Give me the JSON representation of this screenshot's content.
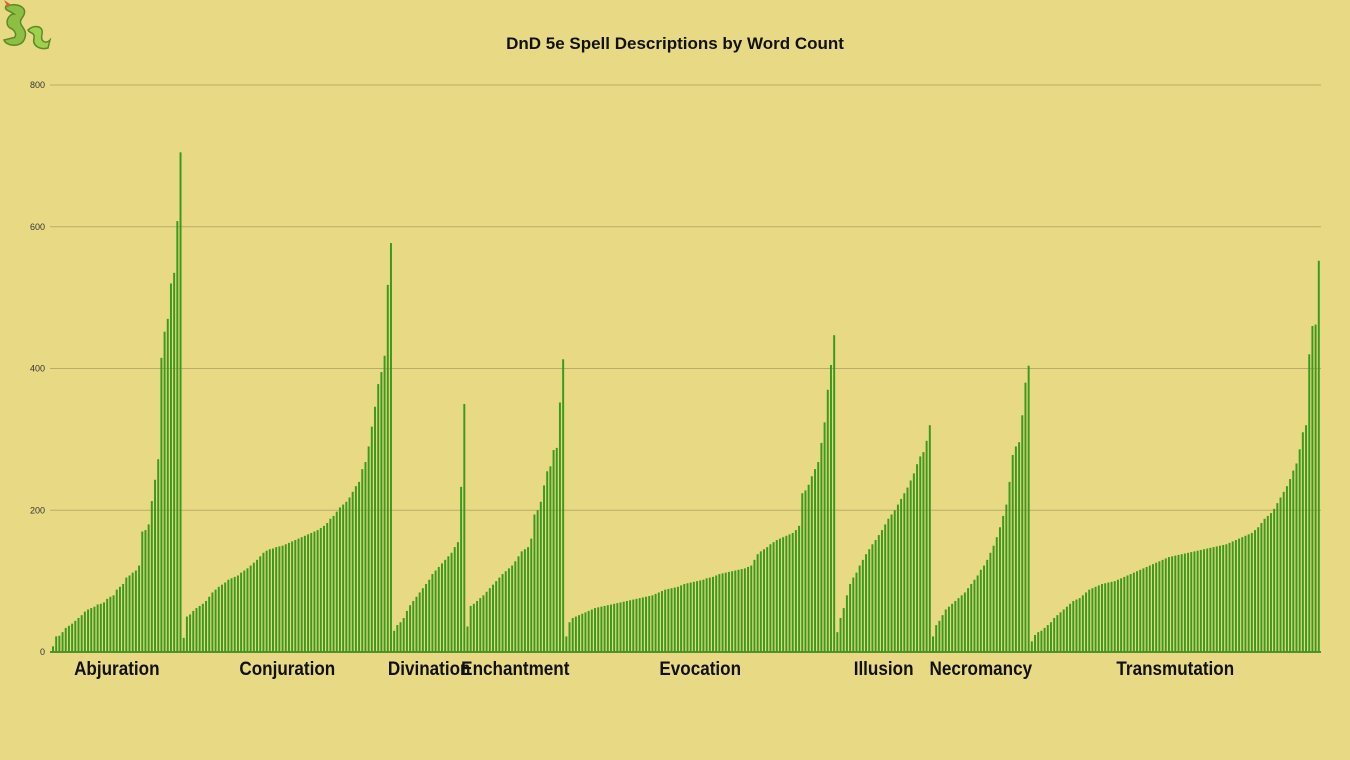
{
  "colors": {
    "background": "#e8da84",
    "bar": "#3b9a1e",
    "bar_edge": "#2a7410",
    "grid": "#b8ad66",
    "logo": "#8dbf45"
  },
  "logo_icon": "dnd-dragon-logo-icon",
  "chart_data": {
    "type": "bar",
    "title": "DnD 5e Spell Descriptions by Word Count",
    "xlabel": "",
    "ylabel": "",
    "ylim": [
      0,
      800
    ],
    "yticks": [
      "0",
      "200",
      "400",
      "600",
      "800"
    ],
    "grid": true,
    "legend": "none",
    "groups": [
      {
        "name": "Abjuration",
        "values": [
          8,
          22,
          23,
          28,
          34,
          37,
          40,
          44,
          48,
          52,
          57,
          60,
          62,
          64,
          67,
          68,
          70,
          75,
          78,
          80,
          88,
          92,
          96,
          105,
          108,
          112,
          115,
          122,
          170,
          172,
          180,
          213,
          243,
          272,
          415,
          452,
          470,
          520,
          535,
          608,
          705
        ]
      },
      {
        "name": "Conjuration",
        "values": [
          20,
          50,
          53,
          58,
          62,
          65,
          68,
          72,
          78,
          84,
          88,
          92,
          95,
          98,
          102,
          104,
          106,
          108,
          112,
          115,
          118,
          122,
          126,
          130,
          135,
          140,
          143,
          145,
          146,
          148,
          149,
          150,
          152,
          154,
          156,
          158,
          160,
          162,
          164,
          166,
          168,
          170,
          172,
          175,
          178,
          182,
          188,
          192,
          198,
          204,
          208,
          212,
          218,
          226,
          234,
          240,
          258,
          268,
          290,
          318,
          346,
          378,
          395,
          418,
          518,
          577
        ]
      },
      {
        "name": "Divination",
        "values": [
          30,
          38,
          42,
          48,
          58,
          66,
          72,
          78,
          84,
          90,
          96,
          102,
          110,
          115,
          120,
          125,
          130,
          135,
          140,
          148,
          155,
          233,
          350
        ]
      },
      {
        "name": "Enchantment",
        "values": [
          36,
          65,
          68,
          72,
          76,
          80,
          85,
          90,
          95,
          100,
          105,
          110,
          114,
          118,
          122,
          128,
          135,
          142,
          145,
          148,
          160,
          194,
          200,
          212,
          235,
          255,
          262,
          285,
          288,
          352,
          413
        ]
      },
      {
        "name": "Evocation",
        "values": [
          22,
          42,
          48,
          50,
          52,
          54,
          56,
          58,
          60,
          62,
          63,
          64,
          65,
          66,
          67,
          68,
          69,
          70,
          71,
          72,
          73,
          74,
          75,
          76,
          77,
          78,
          79,
          80,
          82,
          84,
          86,
          88,
          89,
          90,
          91,
          92,
          94,
          96,
          97,
          98,
          99,
          100,
          101,
          102,
          104,
          105,
          106,
          108,
          110,
          111,
          112,
          113,
          114,
          115,
          116,
          117,
          118,
          120,
          122,
          130,
          138,
          142,
          145,
          148,
          152,
          155,
          158,
          160,
          162,
          164,
          166,
          168,
          172,
          178,
          224,
          228,
          236,
          248,
          258,
          268,
          295,
          324,
          370,
          405,
          447
        ]
      },
      {
        "name": "Illusion",
        "values": [
          28,
          48,
          62,
          80,
          96,
          105,
          112,
          122,
          130,
          138,
          145,
          152,
          158,
          165,
          172,
          180,
          188,
          194,
          200,
          208,
          216,
          224,
          232,
          242,
          252,
          265,
          276,
          282,
          298,
          320
        ]
      },
      {
        "name": "Necromancy",
        "values": [
          22,
          38,
          44,
          52,
          60,
          64,
          68,
          72,
          76,
          80,
          84,
          90,
          96,
          102,
          108,
          116,
          122,
          130,
          140,
          150,
          162,
          176,
          192,
          208,
          240,
          278,
          290,
          296,
          334,
          380,
          404
        ]
      },
      {
        "name": "Transmutation",
        "values": [
          15,
          24,
          28,
          30,
          34,
          38,
          42,
          48,
          52,
          56,
          60,
          64,
          68,
          72,
          74,
          76,
          80,
          84,
          88,
          90,
          92,
          94,
          96,
          97,
          98,
          99,
          100,
          102,
          104,
          106,
          108,
          110,
          112,
          114,
          116,
          118,
          120,
          122,
          124,
          126,
          128,
          130,
          132,
          134,
          135,
          136,
          137,
          138,
          139,
          140,
          141,
          142,
          143,
          144,
          145,
          146,
          147,
          148,
          149,
          150,
          151,
          152,
          154,
          156,
          158,
          160,
          162,
          164,
          166,
          168,
          172,
          176,
          182,
          188,
          192,
          196,
          202,
          210,
          218,
          226,
          234,
          244,
          256,
          266,
          286,
          310,
          320,
          420,
          460,
          462,
          552
        ]
      }
    ]
  }
}
